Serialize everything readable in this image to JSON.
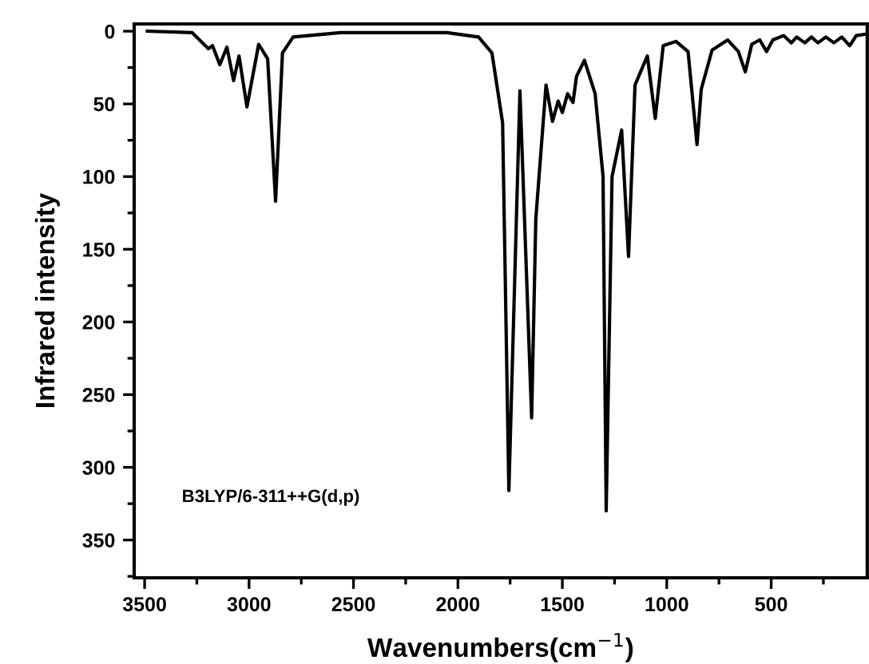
{
  "chart_data": {
    "type": "line",
    "xlabel": "Wavenumbers(cm$^{−1}$)",
    "ylabel": "Infrared intensity",
    "annotations": [
      "B3LYP/6-311++G(d,p)"
    ],
    "xlim": [
      3550,
      40
    ],
    "ylim": [
      376,
      -5
    ],
    "xticks": [
      3500,
      3000,
      2500,
      2000,
      1500,
      1000,
      500
    ],
    "yticks": [
      0,
      50,
      100,
      150,
      200,
      250,
      300,
      350
    ],
    "grid": false,
    "legend": false,
    "marker": "none",
    "line_style": "solid",
    "series": [
      {
        "color": "#000000",
        "x": [
          3487,
          3272,
          3195,
          3175,
          3140,
          3106,
          3074,
          3048,
          3010,
          2954,
          2911,
          2873,
          2840,
          2789,
          2561,
          2053,
          1901,
          1837,
          1786,
          1756,
          1703,
          1647,
          1627,
          1578,
          1547,
          1520,
          1500,
          1475,
          1449,
          1432,
          1394,
          1343,
          1305,
          1290,
          1262,
          1216,
          1183,
          1152,
          1093,
          1055,
          1017,
          956,
          898,
          855,
          835,
          783,
          708,
          657,
          624,
          593,
          555,
          522,
          492,
          441,
          403,
          378,
          339,
          307,
          276,
          238,
          200,
          162,
          124,
          93,
          47
        ],
        "values": [
          0,
          1,
          12,
          10,
          23,
          11,
          34,
          17,
          52,
          9,
          19,
          117,
          15,
          4,
          1,
          1,
          4,
          15,
          63,
          316,
          41,
          266,
          129,
          37,
          62,
          48,
          56,
          43,
          49,
          31,
          20,
          43,
          100,
          330,
          100,
          68,
          155,
          37,
          17,
          60,
          10,
          7,
          14,
          78,
          40,
          13,
          6,
          14,
          28,
          9,
          6,
          14,
          6,
          3,
          8,
          4,
          8,
          4,
          8,
          4,
          8,
          4,
          10,
          3,
          2
        ]
      }
    ]
  }
}
